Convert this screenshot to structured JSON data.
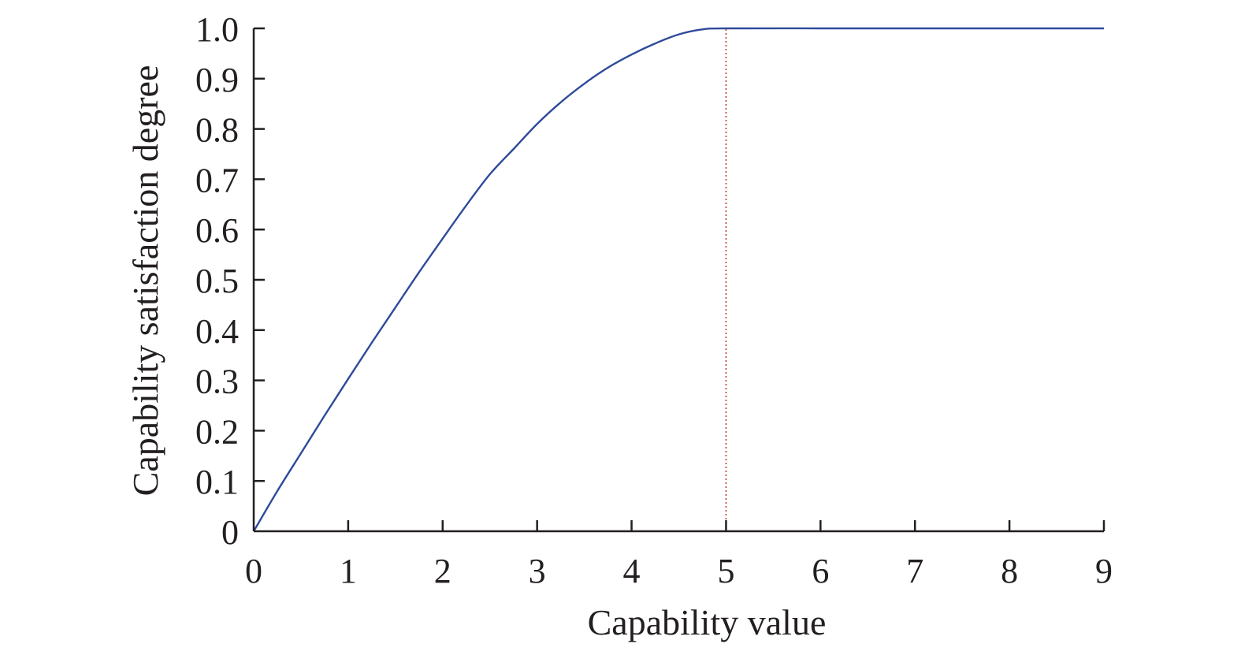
{
  "chart_data": {
    "type": "line",
    "xlabel": "Capability value",
    "ylabel": "Capability satisfaction degree",
    "xlim": [
      0,
      9
    ],
    "ylim": [
      0,
      1.0
    ],
    "x_ticks": [
      "0",
      "1",
      "2",
      "3",
      "4",
      "5",
      "6",
      "7",
      "8",
      "9"
    ],
    "y_ticks": [
      "0",
      "0.1",
      "0.2",
      "0.3",
      "0.4",
      "0.5",
      "0.6",
      "0.7",
      "0.8",
      "0.9",
      "1.0"
    ],
    "grid": false,
    "series": [
      {
        "color": "#2e4a9a",
        "x": [
          0,
          0.25,
          0.5,
          0.75,
          1.0,
          1.25,
          1.5,
          1.75,
          2.0,
          2.25,
          2.5,
          2.75,
          3.0,
          3.25,
          3.5,
          3.75,
          4.0,
          4.25,
          4.5,
          4.75,
          5.0,
          6.0,
          7.0,
          8.0,
          9.0
        ],
        "y": [
          0,
          0.08,
          0.155,
          0.23,
          0.303,
          0.375,
          0.445,
          0.515,
          0.582,
          0.648,
          0.71,
          0.76,
          0.81,
          0.853,
          0.89,
          0.922,
          0.948,
          0.97,
          0.988,
          0.998,
          1.0,
          1.0,
          1.0,
          1.0,
          1.0
        ]
      }
    ],
    "reference_lines": [
      {
        "orientation": "vertical",
        "x": 5,
        "y_from": 0,
        "y_to": 1.0,
        "style": "dotted",
        "color": "#c0392b"
      }
    ]
  }
}
